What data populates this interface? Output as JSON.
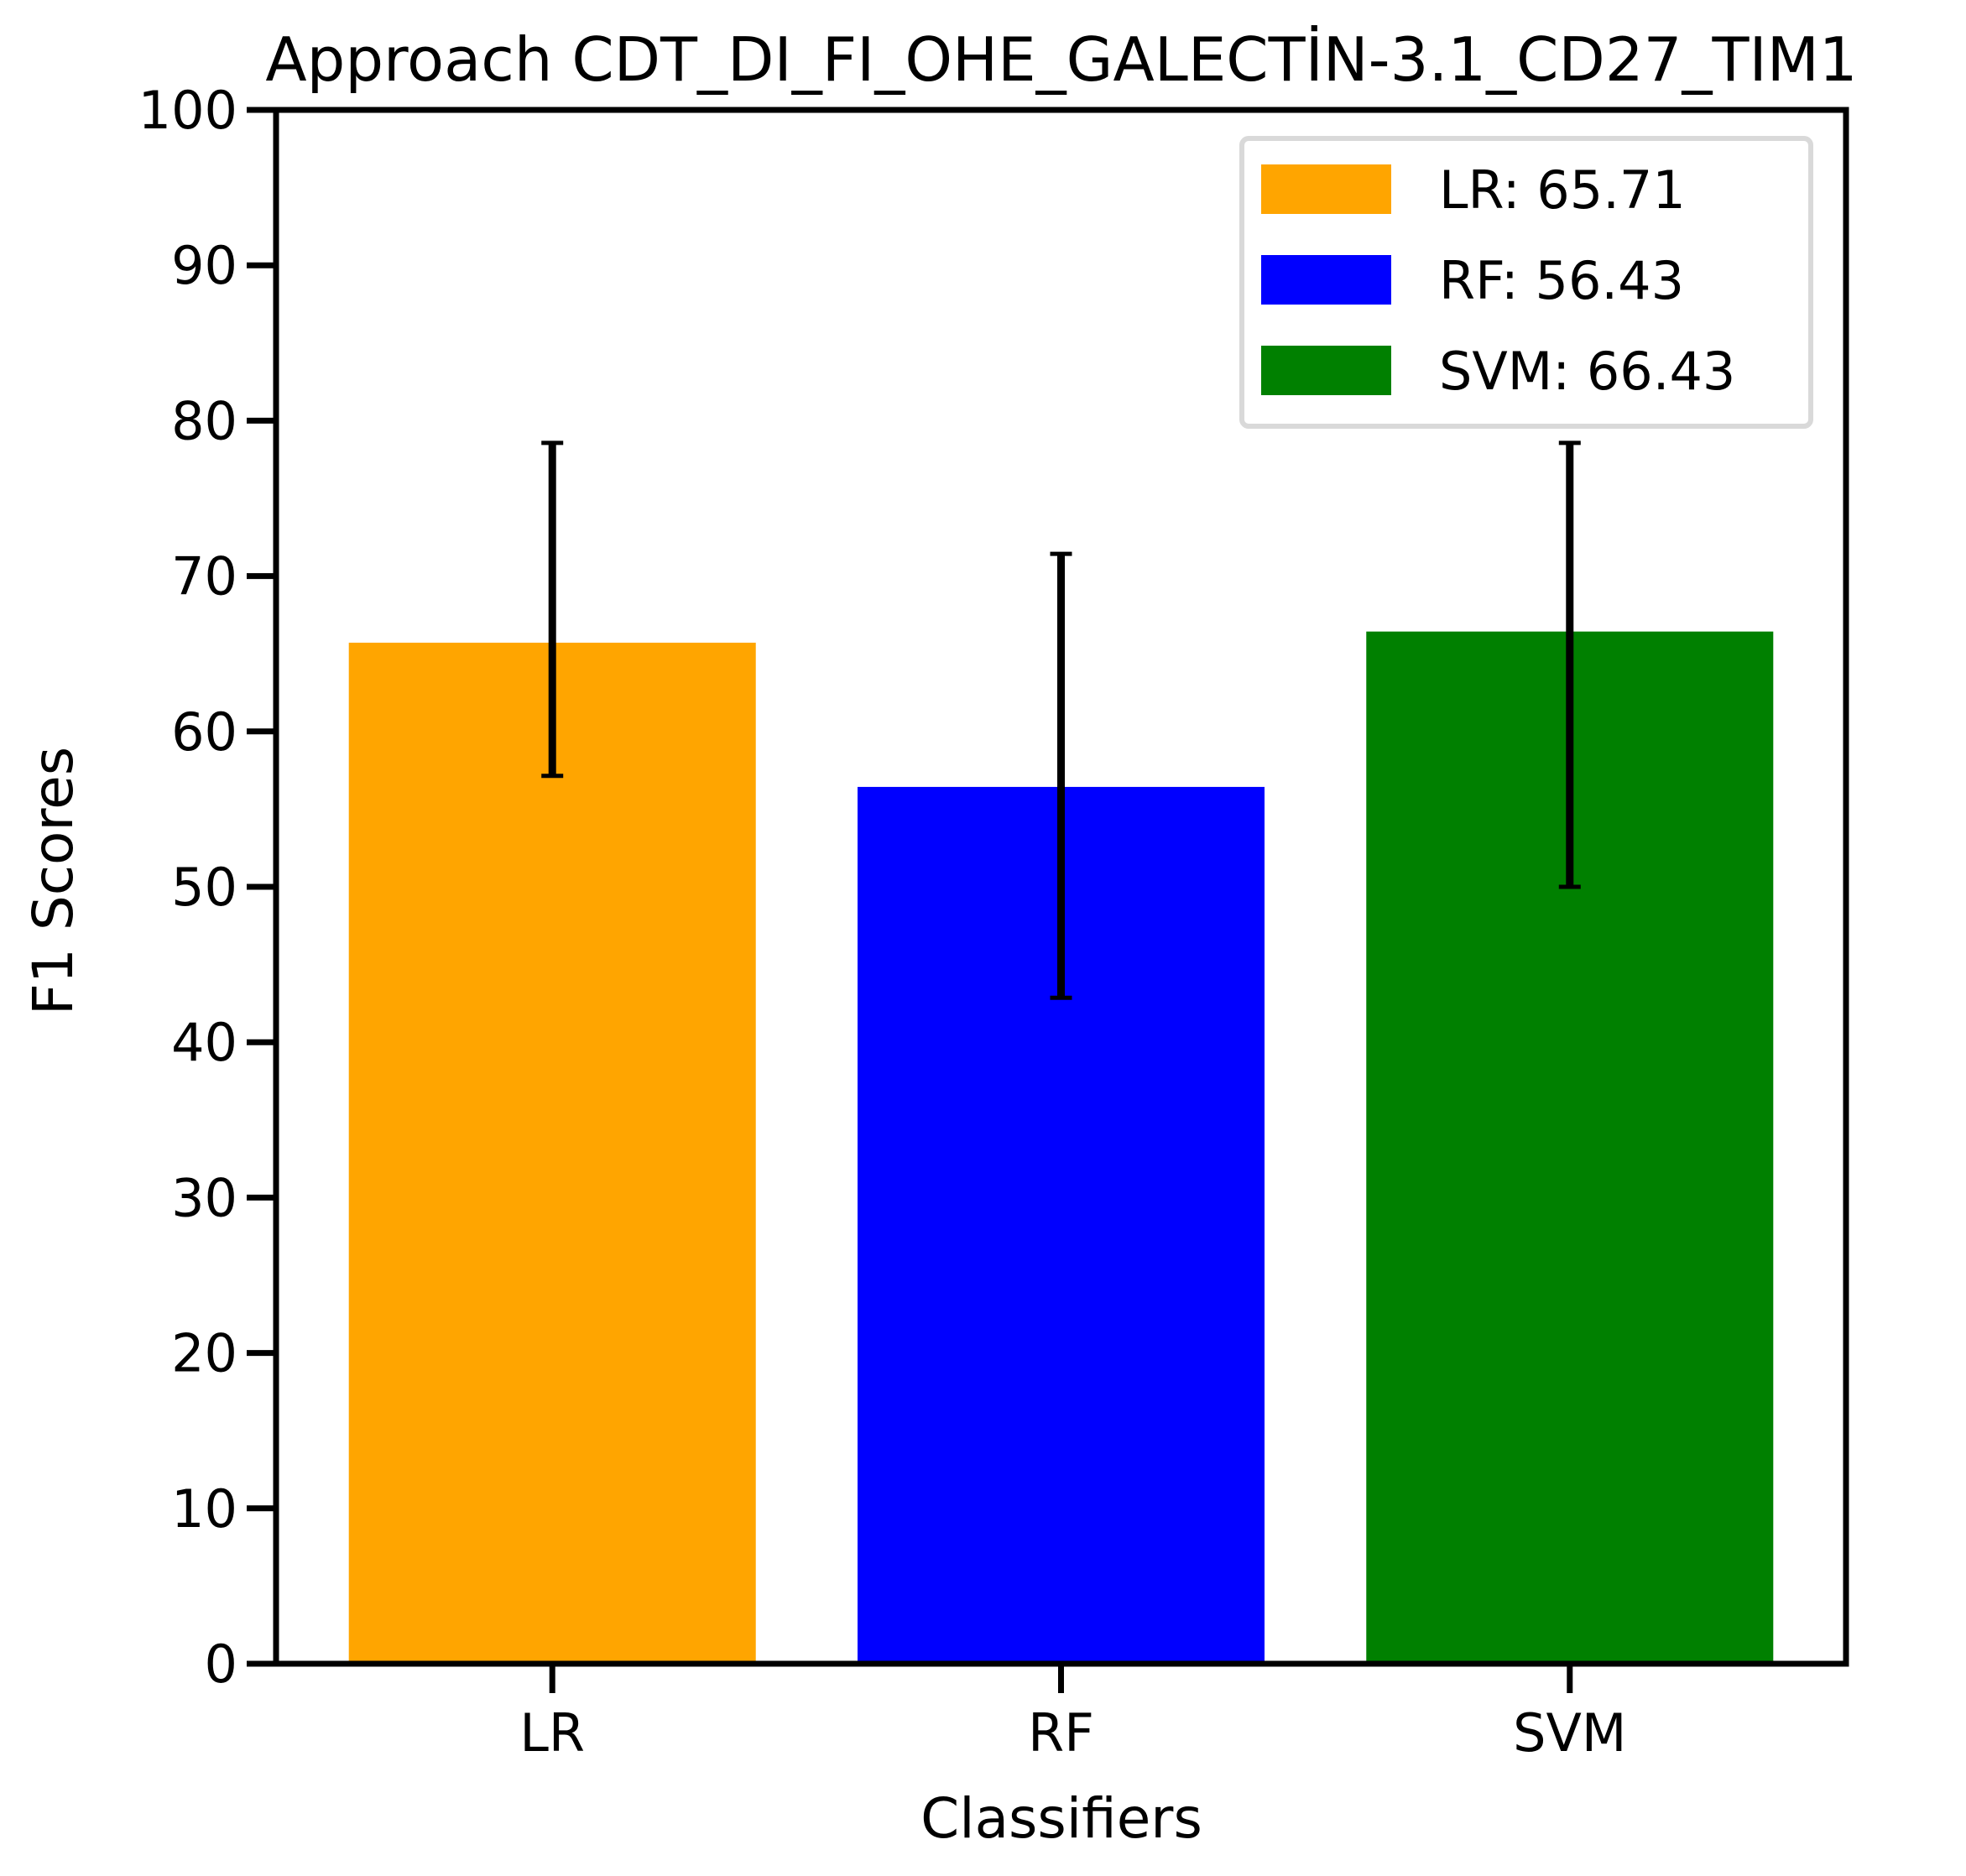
{
  "chart_data": {
    "type": "bar",
    "title": "Approach CDT_DI_FI_OHE_GALECTİN-3.1_CD27_TIM1",
    "xlabel": "Classifiers",
    "ylabel": "F1 Scores",
    "ylim": [
      0,
      100
    ],
    "yticks": [
      "0",
      "10",
      "20",
      "30",
      "40",
      "50",
      "60",
      "70",
      "80",
      "90",
      "100"
    ],
    "categories": [
      "LR",
      "RF",
      "SVM"
    ],
    "values": [
      65.71,
      56.43,
      66.43
    ],
    "error_low": [
      57.14,
      42.86,
      50.0
    ],
    "error_high": [
      78.57,
      71.43,
      78.57
    ],
    "colors": [
      "#ffa500",
      "#0000ff",
      "#008000"
    ],
    "grid": false,
    "legend_position": "top-right",
    "legend": [
      "LR: 65.71",
      "RF: 56.43",
      "SVM: 66.43"
    ]
  }
}
